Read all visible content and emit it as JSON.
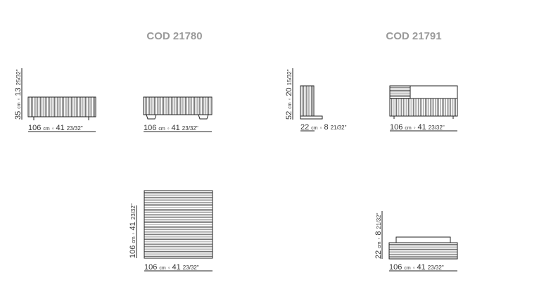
{
  "products": [
    {
      "code": "COD 21780",
      "drawings": [
        {
          "dims": [
            {
              "cm": "106",
              "unit": "cm",
              "sep": "◦",
              "inch": "41",
              "frac": "23/32\""
            },
            {
              "cm": "35",
              "unit": "cm",
              "sep": "◦",
              "inch": "13",
              "frac": "25/32\""
            }
          ]
        },
        {
          "dims": [
            {
              "cm": "106",
              "unit": "cm",
              "sep": "◦",
              "inch": "41",
              "frac": "23/32\""
            }
          ]
        },
        {
          "dims": [
            {
              "cm": "106",
              "unit": "cm",
              "sep": "◦",
              "inch": "41",
              "frac": "23/32\""
            },
            {
              "cm": "106",
              "unit": "cm",
              "sep": "◦",
              "inch": "41",
              "frac": "23/32\""
            }
          ]
        }
      ]
    },
    {
      "code": "COD 21791",
      "drawings": [
        {
          "dims": [
            {
              "cm": "22",
              "unit": "cm",
              "sep": "◦",
              "inch": "8",
              "frac": "21/32\""
            },
            {
              "cm": "52",
              "unit": "cm",
              "sep": "◦",
              "inch": "20",
              "frac": "15/32\""
            }
          ]
        },
        {
          "dims": [
            {
              "cm": "106",
              "unit": "cm",
              "sep": "◦",
              "inch": "41",
              "frac": "23/32\""
            }
          ]
        },
        {
          "dims": [
            {
              "cm": "106",
              "unit": "cm",
              "sep": "◦",
              "inch": "41",
              "frac": "23/32\""
            },
            {
              "cm": "22",
              "unit": "cm",
              "sep": "◦",
              "inch": "8",
              "frac": "21/32\""
            }
          ]
        }
      ]
    }
  ]
}
